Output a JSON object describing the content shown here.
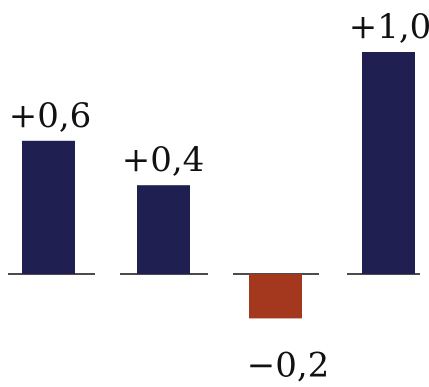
{
  "chart_data": {
    "type": "bar",
    "categories": [
      "",
      "",
      "",
      ""
    ],
    "values": [
      0.6,
      0.4,
      -0.2,
      1.0
    ],
    "data_labels": [
      "+0,6",
      "+0,4",
      "−0,2",
      "+1,0"
    ],
    "title": "",
    "xlabel": "",
    "ylabel": "",
    "ylim": [
      -0.2,
      1.0
    ],
    "grid": false,
    "legend": "none",
    "colors": {
      "positive": "#1f1f52",
      "negative": "#a4381e",
      "label": "#111111",
      "baseline": "#111111"
    }
  }
}
